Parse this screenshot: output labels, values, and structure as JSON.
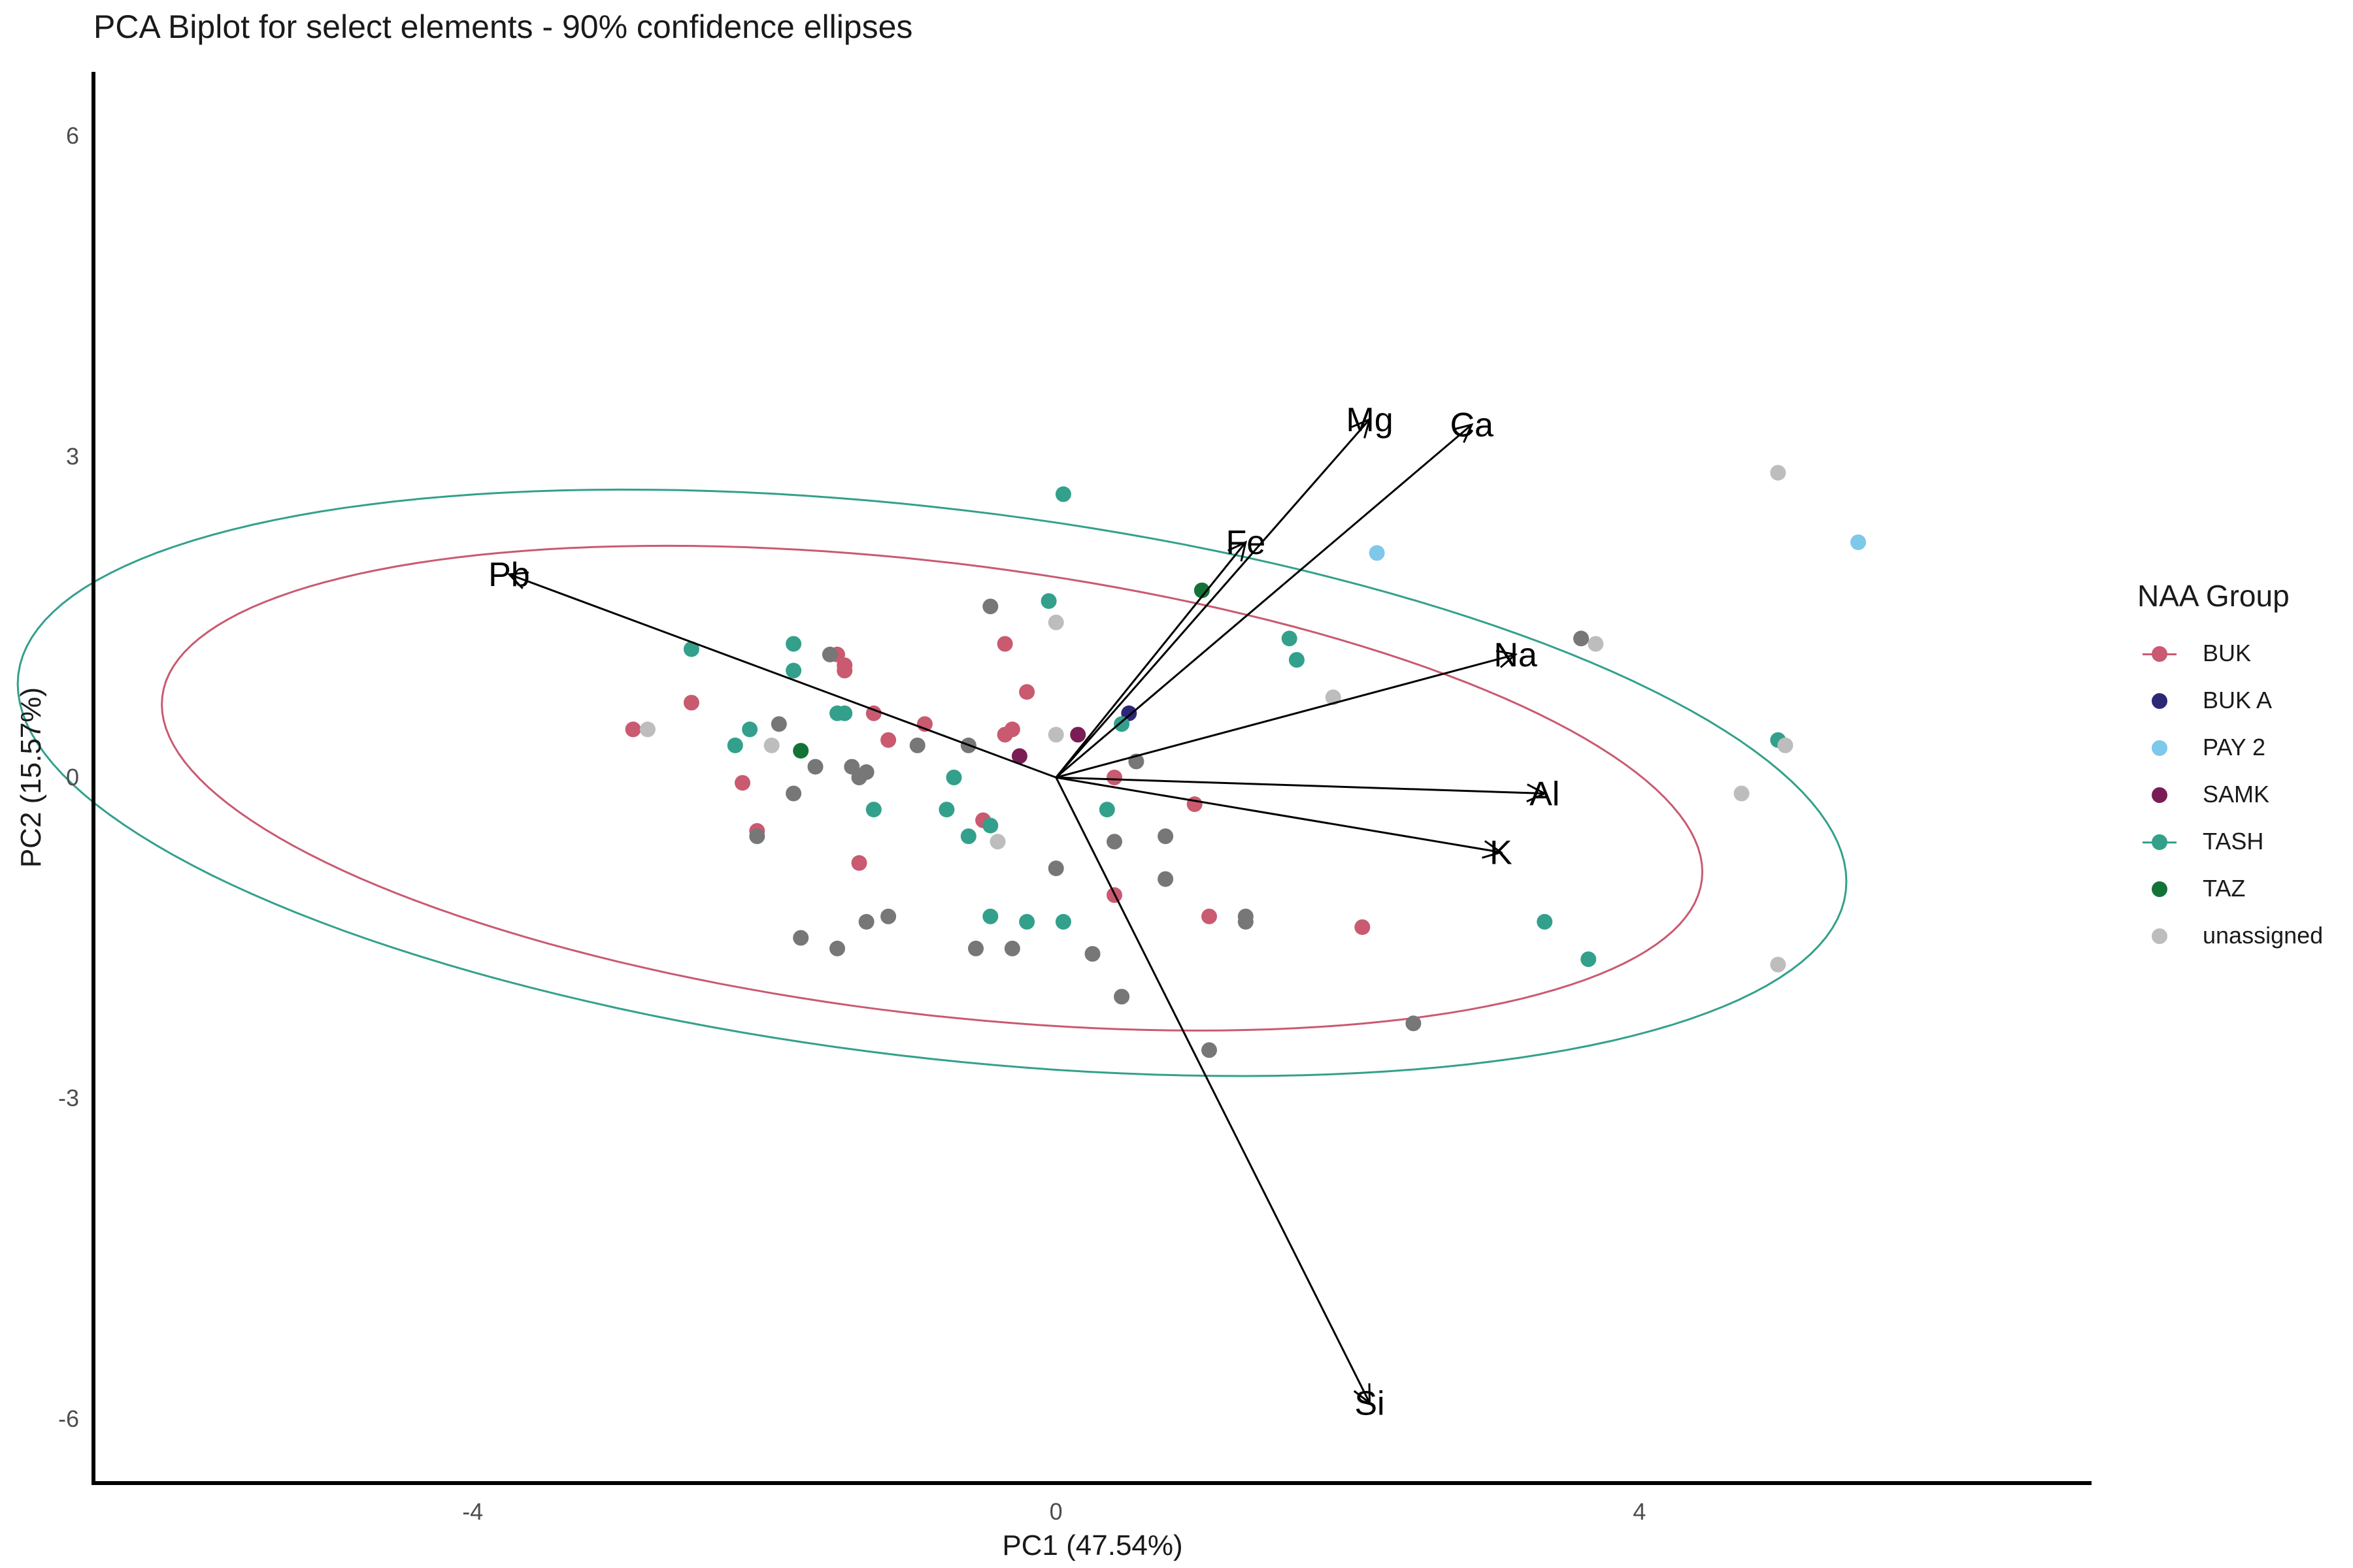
{
  "chart_data": {
    "type": "scatter",
    "title": "PCA Biplot for select elements - 90% confidence ellipses",
    "xlabel": "PC1 (47.54%)",
    "ylabel": "PC2 (15.57%)",
    "xlim": [
      -6.6,
      7.1
    ],
    "ylim": [
      -6.6,
      6.6
    ],
    "x_ticks": [
      -4,
      0,
      4
    ],
    "x_tick_labels": [
      "-4",
      "0",
      "4"
    ],
    "y_ticks": [
      -6,
      -3,
      0,
      3,
      6
    ],
    "y_tick_labels": [
      "-6",
      "-3",
      "0",
      "3",
      "6"
    ],
    "grid": false,
    "legend": {
      "title": "NAA Group",
      "placement": "right",
      "entries": [
        {
          "name": "BUK",
          "color": "#c95a70",
          "line": true
        },
        {
          "name": "BUK A",
          "color": "#2c2776",
          "line": false
        },
        {
          "name": "PAY 2",
          "color": "#7ec8ea",
          "line": false
        },
        {
          "name": "SAMK",
          "color": "#7b1d55",
          "line": false
        },
        {
          "name": "TASH",
          "color": "#33a08c",
          "line": true
        },
        {
          "name": "TAZ",
          "color": "#137336",
          "line": false
        },
        {
          "name": "unassigned",
          "color": "#bdbdbd",
          "line": false
        }
      ]
    },
    "series": [
      {
        "name": "BUK",
        "color": "#c95a70",
        "points": [
          [
            -2.9,
            0.45
          ],
          [
            -2.5,
            0.7
          ],
          [
            -2.15,
            -0.05
          ],
          [
            -2.05,
            -0.5
          ],
          [
            -1.5,
            1.15
          ],
          [
            -1.45,
            1.05
          ],
          [
            -1.45,
            1.0
          ],
          [
            -1.35,
            -0.8
          ],
          [
            -1.25,
            0.6
          ],
          [
            -1.15,
            0.35
          ],
          [
            -0.9,
            0.5
          ],
          [
            -0.5,
            -0.4
          ],
          [
            -0.35,
            1.25
          ],
          [
            -0.35,
            0.4
          ],
          [
            -0.3,
            0.45
          ],
          [
            -0.2,
            0.8
          ],
          [
            0.4,
            0.0
          ],
          [
            0.4,
            -1.1
          ],
          [
            0.95,
            -0.25
          ],
          [
            1.05,
            -1.3
          ],
          [
            2.1,
            -1.4
          ]
        ]
      },
      {
        "name": "BUK A",
        "color": "#2c2776",
        "points": [
          [
            0.5,
            0.6
          ]
        ]
      },
      {
        "name": "PAY 2",
        "color": "#7ec8ea",
        "points": [
          [
            2.2,
            2.1
          ],
          [
            5.5,
            2.2
          ]
        ]
      },
      {
        "name": "SAMK",
        "color": "#7b1d55",
        "points": [
          [
            0.15,
            0.4
          ],
          [
            -0.25,
            0.2
          ]
        ]
      },
      {
        "name": "TASH",
        "color": "#33a08c",
        "points": [
          [
            -2.5,
            1.2
          ],
          [
            -2.2,
            0.3
          ],
          [
            -2.1,
            0.45
          ],
          [
            -1.8,
            1.25
          ],
          [
            -1.8,
            1.0
          ],
          [
            -1.5,
            0.6
          ],
          [
            -1.45,
            0.6
          ],
          [
            -1.25,
            -0.3
          ],
          [
            -0.75,
            -0.3
          ],
          [
            -0.7,
            0.0
          ],
          [
            -0.6,
            -0.55
          ],
          [
            -0.45,
            -1.3
          ],
          [
            -0.45,
            -0.45
          ],
          [
            0.05,
            2.65
          ],
          [
            -0.05,
            1.65
          ],
          [
            -0.2,
            -1.35
          ],
          [
            0.05,
            -1.35
          ],
          [
            0.35,
            -0.3
          ],
          [
            0.45,
            0.5
          ],
          [
            1.6,
            1.3
          ],
          [
            1.65,
            1.1
          ],
          [
            3.35,
            -1.35
          ],
          [
            3.65,
            -1.7
          ],
          [
            4.95,
            0.35
          ]
        ]
      },
      {
        "name": "TAZ",
        "color": "#137336",
        "points": [
          [
            1.0,
            1.75
          ],
          [
            -1.75,
            0.25
          ]
        ]
      },
      {
        "name": "unassigned",
        "color": "#bdbdbd",
        "points": [
          [
            -2.8,
            0.45
          ],
          [
            -1.95,
            0.3
          ],
          [
            -0.4,
            -0.6
          ],
          [
            0.0,
            1.45
          ],
          [
            0.0,
            0.4
          ],
          [
            1.9,
            0.75
          ],
          [
            3.7,
            1.25
          ],
          [
            4.95,
            2.85
          ],
          [
            5.0,
            0.3
          ],
          [
            4.7,
            -0.15
          ],
          [
            4.95,
            -1.75
          ]
        ]
      },
      {
        "name": "",
        "color": "#777777",
        "points": [
          [
            -1.9,
            0.5
          ],
          [
            -1.8,
            -0.15
          ],
          [
            -1.65,
            0.1
          ],
          [
            -1.4,
            0.1
          ],
          [
            -1.35,
            0.0
          ],
          [
            -1.3,
            0.05
          ],
          [
            -1.55,
            1.15
          ],
          [
            -2.05,
            -0.55
          ],
          [
            -1.75,
            -1.5
          ],
          [
            -1.5,
            -1.6
          ],
          [
            -1.3,
            -1.35
          ],
          [
            -1.15,
            -1.3
          ],
          [
            -0.95,
            0.3
          ],
          [
            -0.6,
            0.3
          ],
          [
            -0.45,
            1.6
          ],
          [
            -0.55,
            -1.6
          ],
          [
            -0.3,
            -1.6
          ],
          [
            0.0,
            -0.85
          ],
          [
            0.25,
            -1.65
          ],
          [
            0.4,
            -0.6
          ],
          [
            0.45,
            -2.05
          ],
          [
            0.55,
            0.15
          ],
          [
            0.75,
            -0.55
          ],
          [
            0.75,
            -0.95
          ],
          [
            1.05,
            -2.55
          ],
          [
            1.3,
            -1.35
          ],
          [
            1.3,
            -1.3
          ],
          [
            2.45,
            -2.3
          ],
          [
            3.6,
            1.3
          ]
        ]
      }
    ],
    "loadings": [
      {
        "name": "Pb",
        "x": -3.75,
        "y": 1.9
      },
      {
        "name": "Mg",
        "x": 2.15,
        "y": 3.35
      },
      {
        "name": "Ca",
        "x": 2.85,
        "y": 3.3
      },
      {
        "name": "Fe",
        "x": 1.3,
        "y": 2.2
      },
      {
        "name": "Na",
        "x": 3.15,
        "y": 1.15
      },
      {
        "name": "Al",
        "x": 3.35,
        "y": -0.15
      },
      {
        "name": "K",
        "x": 3.05,
        "y": -0.7
      },
      {
        "name": "Si",
        "x": 2.15,
        "y": -5.85
      }
    ],
    "ellipses": [
      {
        "group": "BUK",
        "color": "#c95a70",
        "center": [
          -0.85,
          -0.1
        ],
        "semi_axes": [
          5.35,
          2.1
        ],
        "angle_deg": -10
      },
      {
        "group": "TASH",
        "color": "#33a08c",
        "center": [
          -0.85,
          -0.05
        ],
        "semi_axes": [
          6.35,
          2.55
        ],
        "angle_deg": -10
      }
    ]
  }
}
